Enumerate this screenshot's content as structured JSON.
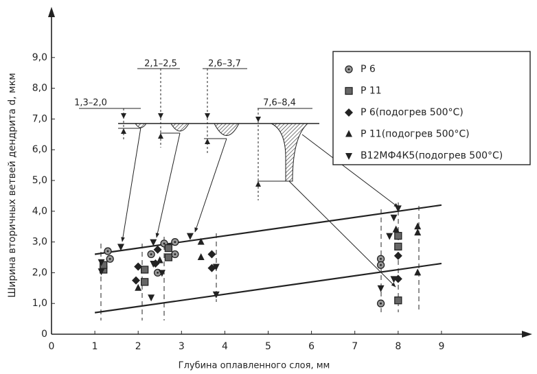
{
  "chart_data": {
    "type": "scatter",
    "y_label": "Ширина вторичных ветвей дендрита d, мкм",
    "x_label": "Глубина оплавленного слоя, мм",
    "xlim": [
      0,
      10.8
    ],
    "ylim": [
      0,
      10.5
    ],
    "xticks": [
      0,
      1,
      2,
      3,
      4,
      5,
      6,
      7,
      8,
      9
    ],
    "yticks": [
      0,
      {
        "value": 1,
        "label": "1,0"
      },
      {
        "value": 2,
        "label": "2,0"
      },
      {
        "value": 3,
        "label": "3,0"
      },
      {
        "value": 4,
        "label": "4,0"
      },
      {
        "value": 5,
        "label": "5,0"
      },
      {
        "value": 6,
        "label": "6,0"
      },
      {
        "value": 7,
        "label": "7,0"
      },
      {
        "value": 8,
        "label": "8,0"
      },
      {
        "value": 9,
        "label": "9,0"
      }
    ],
    "annotations": [
      "1,3–2,0",
      "2,1–2,5",
      "2,6–3,7",
      "7,6–8,4"
    ],
    "series": [
      {
        "name": "Р 6",
        "color": "#222",
        "marker": "circle-dot",
        "x": [
          1.3,
          1.35,
          2.3,
          2.45,
          2.6,
          2.85,
          2.85,
          7.6,
          7.6,
          7.6
        ],
        "values": [
          2.7,
          2.45,
          2.6,
          2.0,
          2.95,
          3.0,
          2.6,
          2.45,
          2.25,
          1.0
        ]
      },
      {
        "name": "Р 11",
        "color": "#222",
        "marker": "square",
        "x": [
          1.2,
          1.2,
          2.15,
          2.15,
          2.7,
          2.7,
          8.0,
          8.0,
          8.0
        ],
        "values": [
          2.1,
          2.25,
          1.7,
          2.1,
          2.8,
          2.5,
          3.2,
          2.85,
          1.1
        ]
      },
      {
        "name": "Р 6(подогрев 500°С)",
        "color": "#222",
        "marker": "diamond",
        "x": [
          2.0,
          1.95,
          2.45,
          2.4,
          3.7,
          3.7,
          8.0,
          8.0
        ],
        "values": [
          2.2,
          1.75,
          2.75,
          2.3,
          2.6,
          2.15,
          2.55,
          1.8
        ]
      },
      {
        "name": "Р 11(подогрев 500°С)",
        "color": "#222",
        "marker": "triangle-up",
        "x": [
          2.0,
          2.5,
          3.45,
          3.45,
          7.95,
          8.45,
          8.45,
          8.45
        ],
        "values": [
          1.5,
          2.4,
          3.0,
          2.5,
          3.4,
          3.5,
          3.3,
          2.0
        ]
      },
      {
        "name": "В12МФ4К5(подогрев 500°С)",
        "color": "#222",
        "marker": "triangle-down",
        "x": [
          1.15,
          1.15,
          2.3,
          2.35,
          2.55,
          3.8,
          3.8,
          7.9,
          7.8,
          7.9,
          7.6,
          1.6,
          2.35,
          3.2,
          8.0
        ],
        "values": [
          2.35,
          2.05,
          1.2,
          2.3,
          2.0,
          2.2,
          1.3,
          3.8,
          3.2,
          1.8,
          1.5,
          2.85,
          3.0,
          3.2,
          4.1
        ]
      }
    ],
    "lines": [
      {
        "x": [
          1,
          9
        ],
        "values": [
          2.6,
          4.2
        ]
      },
      {
        "x": [
          1,
          9
        ],
        "values": [
          0.7,
          2.3
        ]
      }
    ]
  }
}
